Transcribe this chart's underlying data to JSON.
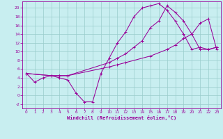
{
  "title": "",
  "xlabel": "Windchill (Refroidissement éolien,°C)",
  "bg_color": "#c8eef0",
  "grid_color": "#99cccc",
  "line_color": "#990099",
  "xlim": [
    -0.5,
    23.5
  ],
  "ylim": [
    -3,
    21.5
  ],
  "xticks": [
    0,
    1,
    2,
    3,
    4,
    5,
    6,
    7,
    8,
    9,
    10,
    11,
    12,
    13,
    14,
    15,
    16,
    17,
    18,
    19,
    20,
    21,
    22,
    23
  ],
  "yticks": [
    -2,
    0,
    2,
    4,
    6,
    8,
    10,
    12,
    14,
    16,
    18,
    20
  ],
  "line1_x": [
    0,
    1,
    2,
    3,
    4,
    5,
    6,
    7,
    8,
    9,
    10,
    11,
    12,
    13,
    14,
    15,
    16,
    17,
    18,
    19,
    20,
    21,
    22,
    23
  ],
  "line1_y": [
    5,
    3,
    4,
    4.5,
    4,
    3.5,
    0.5,
    -1.5,
    -1.5,
    5,
    8.5,
    12,
    14.5,
    18,
    20,
    20.5,
    21,
    19.5,
    17,
    14,
    10.5,
    11,
    10.5,
    11
  ],
  "line2_x": [
    0,
    3,
    4,
    5,
    10,
    11,
    12,
    13,
    14,
    15,
    16,
    17,
    18,
    19,
    20,
    21,
    22,
    23
  ],
  "line2_y": [
    5,
    4.5,
    4.5,
    4.5,
    7.5,
    8.5,
    9.5,
    11,
    12.5,
    15.5,
    17,
    20.5,
    19,
    17,
    14,
    10.5,
    10.5,
    11
  ],
  "line3_x": [
    0,
    3,
    4,
    5,
    10,
    11,
    12,
    15,
    17,
    18,
    19,
    20,
    21,
    22,
    23
  ],
  "line3_y": [
    5,
    4.5,
    4.5,
    4.5,
    6.5,
    7,
    7.5,
    9,
    10.5,
    11.5,
    13,
    14,
    16.5,
    17.5,
    10.5
  ]
}
